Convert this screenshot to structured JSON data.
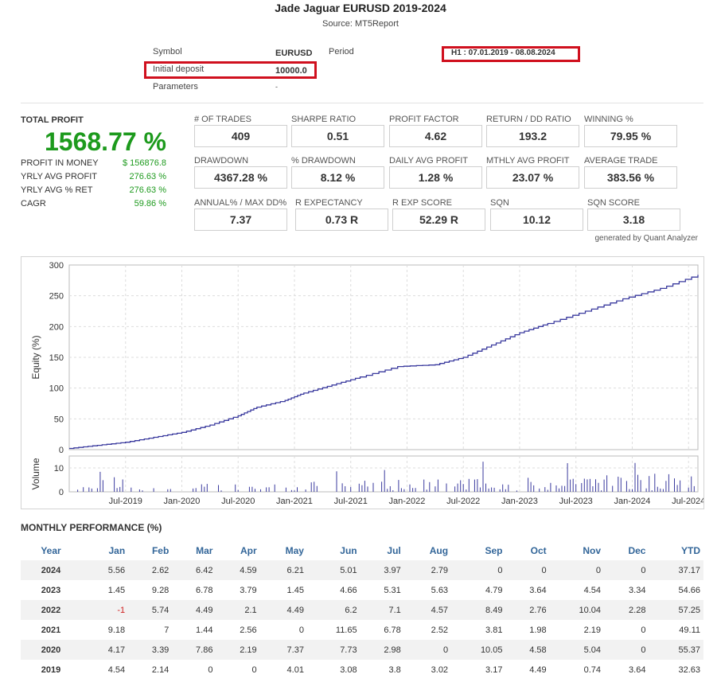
{
  "report": {
    "title": "Jade Jaguar EURUSD 2019-2024",
    "source": "Source: MT5Report"
  },
  "info": {
    "symbol_label": "Symbol",
    "symbol_value": "EURUSD",
    "period_label": "Period",
    "period_value": "H1 : 07.01.2019 - 08.08.2024",
    "deposit_label": "Initial deposit",
    "deposit_value": "10000.0",
    "params_label": "Parameters",
    "params_value": "-"
  },
  "total_profit": {
    "title": "TOTAL PROFIT",
    "value": "1568.77 %",
    "rows": [
      {
        "label": "PROFIT IN MONEY",
        "value": "$ 156876.8"
      },
      {
        "label": "YRLY AVG PROFIT",
        "value": "276.63 %"
      },
      {
        "label": "YRLY AVG % RET",
        "value": "276.63 %"
      },
      {
        "label": "CAGR",
        "value": "59.86 %"
      }
    ]
  },
  "metrics": [
    {
      "label": "# OF TRADES",
      "value": "409"
    },
    {
      "label": "SHARPE RATIO",
      "value": "0.51"
    },
    {
      "label": "PROFIT FACTOR",
      "value": "4.62"
    },
    {
      "label": "RETURN / DD RATIO",
      "value": "193.2"
    },
    {
      "label": "WINNING %",
      "value": "79.95 %"
    },
    {
      "label": "DRAWDOWN",
      "value": "4367.28 %"
    },
    {
      "label": "% DRAWDOWN",
      "value": "8.12 %"
    },
    {
      "label": "DAILY AVG PROFIT",
      "value": "1.28 %"
    },
    {
      "label": "MTHLY AVG PROFIT",
      "value": "23.07 %"
    },
    {
      "label": "AVERAGE TRADE",
      "value": "383.56 %"
    },
    {
      "label": "ANNUAL% / MAX DD%",
      "value": "7.37"
    },
    {
      "label": "R EXPECTANCY",
      "value": "0.73 R"
    },
    {
      "label": "R EXP SCORE",
      "value": "52.29 R"
    },
    {
      "label": "SQN",
      "value": "10.12"
    },
    {
      "label": "SQN SCORE",
      "value": "3.18"
    }
  ],
  "generated_by": "generated by Quant Analyzer",
  "chart_data": {
    "type": "line",
    "ylabel": "Equity (%)",
    "ylim": [
      0,
      300
    ],
    "y_ticks": [
      "0",
      "50",
      "100",
      "150",
      "200",
      "250",
      "300"
    ],
    "x_tick_labels": [
      "Jul-2019",
      "Jan-2020",
      "Jul-2020",
      "Jan-2021",
      "Jul-2021",
      "Jan-2022",
      "Jul-2022",
      "Jan-2023",
      "Jul-2023",
      "Jan-2024",
      "Jul-2024"
    ],
    "x_range": [
      "2019-01",
      "2024-08"
    ],
    "equity_points": [
      {
        "x": "2019-01",
        "y": 2
      },
      {
        "x": "2019-04",
        "y": 7
      },
      {
        "x": "2019-07",
        "y": 12
      },
      {
        "x": "2019-10",
        "y": 20
      },
      {
        "x": "2020-01",
        "y": 28
      },
      {
        "x": "2020-04",
        "y": 40
      },
      {
        "x": "2020-07",
        "y": 55
      },
      {
        "x": "2020-09",
        "y": 69
      },
      {
        "x": "2020-12",
        "y": 80
      },
      {
        "x": "2021-02",
        "y": 92
      },
      {
        "x": "2021-05",
        "y": 105
      },
      {
        "x": "2021-08",
        "y": 118
      },
      {
        "x": "2021-12",
        "y": 135
      },
      {
        "x": "2022-04",
        "y": 138
      },
      {
        "x": "2022-07",
        "y": 150
      },
      {
        "x": "2022-10",
        "y": 170
      },
      {
        "x": "2023-01",
        "y": 190
      },
      {
        "x": "2023-04",
        "y": 205
      },
      {
        "x": "2023-08",
        "y": 225
      },
      {
        "x": "2023-12",
        "y": 245
      },
      {
        "x": "2024-04",
        "y": 262
      },
      {
        "x": "2024-08",
        "y": 284
      }
    ],
    "volume": {
      "ylabel": "Volume",
      "ylim": [
        0,
        15
      ],
      "y_ticks": [
        "0",
        "10"
      ]
    },
    "line_color": "#3a3a9e",
    "volume_color": "#3a3a9e"
  },
  "monthly": {
    "title": "MONTHLY PERFORMANCE (%)",
    "headers": [
      "Year",
      "Jan",
      "Feb",
      "Mar",
      "Apr",
      "May",
      "Jun",
      "Jul",
      "Aug",
      "Sep",
      "Oct",
      "Nov",
      "Dec",
      "YTD"
    ],
    "rows": [
      [
        "2024",
        "5.56",
        "2.62",
        "6.42",
        "4.59",
        "6.21",
        "5.01",
        "3.97",
        "2.79",
        "0",
        "0",
        "0",
        "0",
        "37.17"
      ],
      [
        "2023",
        "1.45",
        "9.28",
        "6.78",
        "3.79",
        "1.45",
        "4.66",
        "5.31",
        "5.63",
        "4.79",
        "3.64",
        "4.54",
        "3.34",
        "54.66"
      ],
      [
        "2022",
        "-1",
        "5.74",
        "4.49",
        "2.1",
        "4.49",
        "6.2",
        "7.1",
        "4.57",
        "8.49",
        "2.76",
        "10.04",
        "2.28",
        "57.25"
      ],
      [
        "2021",
        "9.18",
        "7",
        "1.44",
        "2.56",
        "0",
        "11.65",
        "6.78",
        "2.52",
        "3.81",
        "1.98",
        "2.19",
        "0",
        "49.11"
      ],
      [
        "2020",
        "4.17",
        "3.39",
        "7.86",
        "2.19",
        "7.37",
        "7.73",
        "2.98",
        "0",
        "10.05",
        "4.58",
        "5.04",
        "0",
        "55.37"
      ],
      [
        "2019",
        "4.54",
        "2.14",
        "0",
        "0",
        "4.01",
        "3.08",
        "3.8",
        "3.02",
        "3.17",
        "4.49",
        "0.74",
        "3.64",
        "32.63"
      ]
    ]
  }
}
